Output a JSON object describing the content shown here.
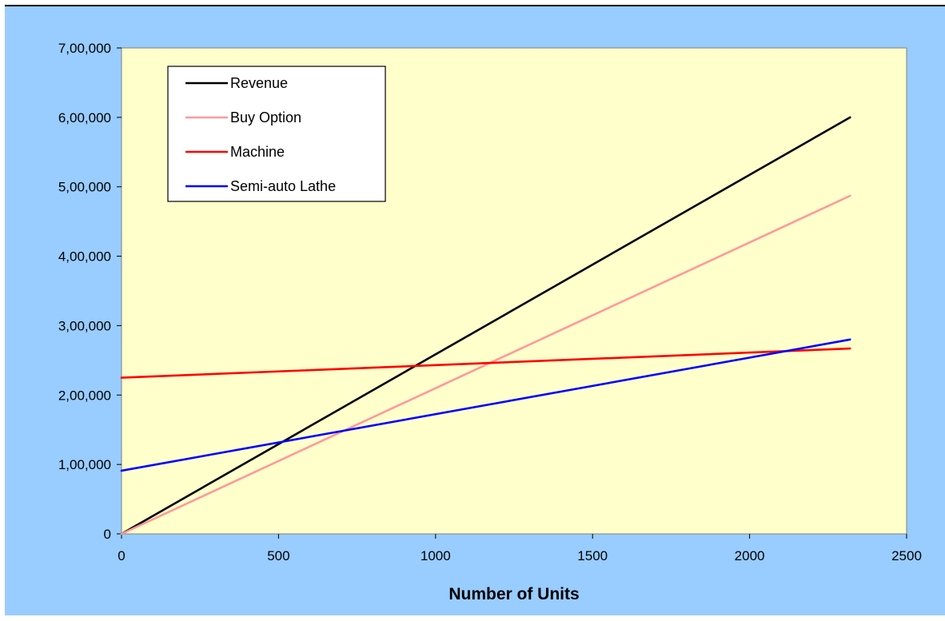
{
  "chart_data": {
    "type": "line",
    "title": "",
    "xlabel": "Number of Units",
    "ylabel": "",
    "xlim": [
      0,
      2500
    ],
    "ylim": [
      0,
      700000
    ],
    "x_ticks": [
      0,
      500,
      1000,
      1500,
      2000,
      2500
    ],
    "x_tick_labels": [
      "0",
      "500",
      "1000",
      "1500",
      "2000",
      "2500"
    ],
    "y_ticks": [
      0,
      100000,
      200000,
      300000,
      400000,
      500000,
      600000,
      700000
    ],
    "y_tick_labels": [
      "0",
      "1,00,000",
      "2,00,000",
      "3,00,000",
      "4,00,000",
      "5,00,000",
      "6,00,000",
      "7,00,000"
    ],
    "grid": false,
    "legend_position": "top-left",
    "colors": {
      "outer_background": "#99ccff",
      "plot_background": "#ffffcc"
    },
    "x": [
      0,
      2320
    ],
    "series": [
      {
        "name": "Revenue",
        "color": "#000000",
        "values": [
          0,
          600000
        ]
      },
      {
        "name": "Buy Option",
        "color": "#ff9999",
        "values": [
          0,
          487000
        ]
      },
      {
        "name": "Machine",
        "color": "#ff0000",
        "values": [
          225000,
          267000
        ]
      },
      {
        "name": "Semi-auto Lathe",
        "color": "#0000ff",
        "values": [
          91000,
          280000
        ]
      }
    ]
  }
}
